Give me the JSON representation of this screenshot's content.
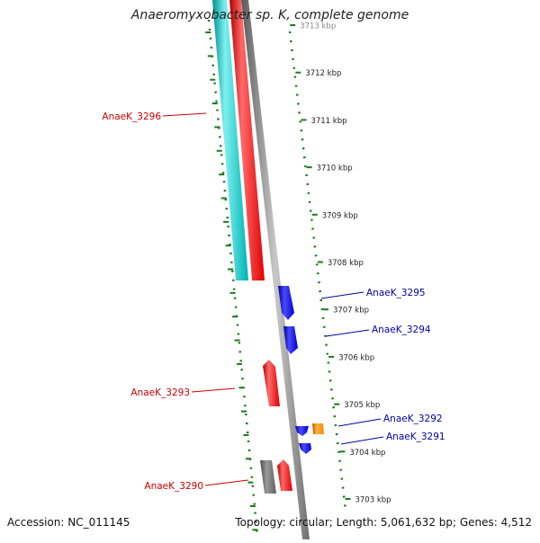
{
  "title": "Anaeromyxobacter sp. K, complete genome",
  "footer": {
    "accession": "Accession: NC_011145",
    "summary": "Topology: circular; Length: 5,061,632 bp; Genes: 4,512"
  },
  "colors": {
    "forward_gene": "#ff0000",
    "reverse_gene": "#0000ff",
    "rna_gene": "#ff8800",
    "other_gene": "#666666",
    "cyan_feature": "#00c8c8",
    "backbone": "#888888",
    "ticks": "#1a7a1a",
    "label_forward": "#cc0000",
    "label_reverse": "#0000aa"
  },
  "ruler": {
    "unit": "kbp",
    "labels": [
      "3713 kbp",
      "3712 kbp",
      "3711 kbp",
      "3710 kbp",
      "3709 kbp",
      "3708 kbp",
      "3707 kbp",
      "3706 kbp",
      "3705 kbp",
      "3704 kbp",
      "3703 kbp"
    ]
  },
  "gene_labels_left": [
    "AnaeK_3296",
    "AnaeK_3293",
    "AnaeK_3290"
  ],
  "gene_labels_right": [
    "AnaeK_3295",
    "AnaeK_3294",
    "AnaeK_3292",
    "AnaeK_3291"
  ]
}
